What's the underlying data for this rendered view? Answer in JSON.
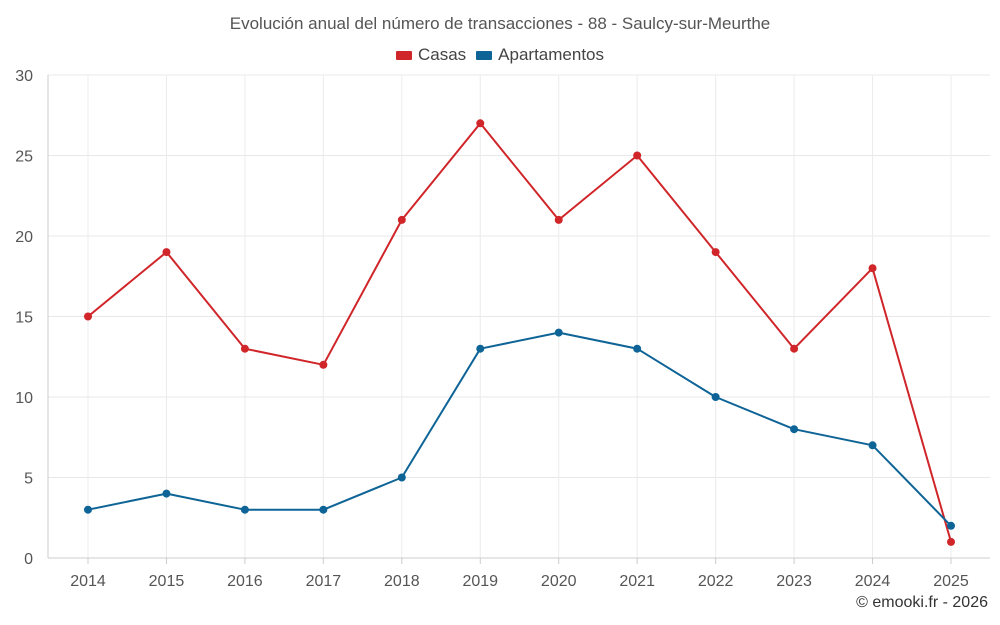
{
  "chart_data": {
    "type": "line",
    "title": "Evolución anual del número de transacciones - 88 - Saulcy-sur-Meurthe",
    "x": [
      "2014",
      "2015",
      "2016",
      "2017",
      "2018",
      "2019",
      "2020",
      "2021",
      "2022",
      "2023",
      "2024",
      "2025"
    ],
    "series": [
      {
        "name": "Casas",
        "color": "#d0262a",
        "values": [
          15,
          19,
          13,
          12,
          21,
          27,
          21,
          25,
          19,
          13,
          18,
          1
        ]
      },
      {
        "name": "Apartamentos",
        "color": "#0e6496",
        "values": [
          3,
          4,
          3,
          3,
          5,
          13,
          14,
          13,
          10,
          8,
          7,
          2
        ]
      }
    ],
    "ylim": [
      0,
      30
    ],
    "yticks": [
      0,
      5,
      10,
      15,
      20,
      25,
      30
    ],
    "grid": true,
    "legend": "top-center",
    "xlabel": "",
    "ylabel": ""
  },
  "credit": "© emooki.fr - 2026"
}
